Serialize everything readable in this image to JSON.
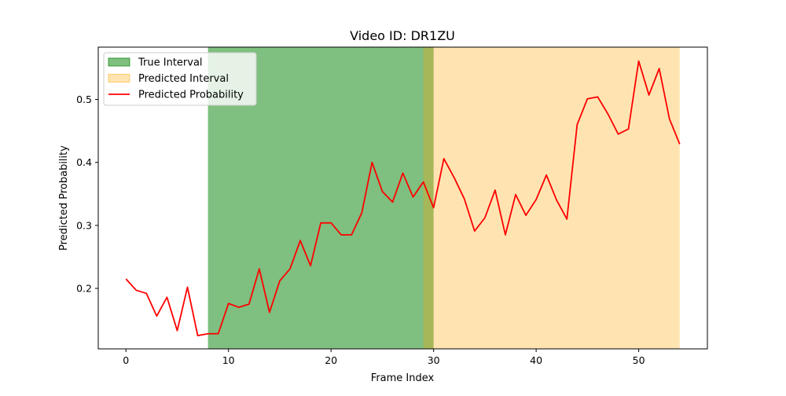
{
  "chart_data": {
    "type": "line",
    "title": "Video ID: DR1ZU",
    "xlabel": "Frame Index",
    "ylabel": "Predicted Probability",
    "xlim": [
      -2.7,
      56.7
    ],
    "ylim": [
      0.104,
      0.583
    ],
    "xticks": [
      0,
      10,
      20,
      30,
      40,
      50
    ],
    "yticks": [
      0.2,
      0.3,
      0.4,
      0.5
    ],
    "xtick_labels": [
      "0",
      "10",
      "20",
      "30",
      "40",
      "50"
    ],
    "ytick_labels": [
      "0.2",
      "0.3",
      "0.4",
      "0.5"
    ],
    "grid": false,
    "legend_position": "upper-left",
    "intervals": [
      {
        "name": "True Interval",
        "start": 8,
        "end": 30,
        "color": "#008000",
        "opacity": 0.5
      },
      {
        "name": "Predicted Interval",
        "start": 29,
        "end": 54,
        "color": "#ffa500",
        "opacity": 0.3
      }
    ],
    "series": [
      {
        "name": "Predicted Probability",
        "color": "#ff0000",
        "x": [
          0,
          1,
          2,
          3,
          4,
          5,
          6,
          7,
          8,
          9,
          10,
          11,
          12,
          13,
          14,
          15,
          16,
          17,
          18,
          19,
          20,
          21,
          22,
          23,
          24,
          25,
          26,
          27,
          28,
          29,
          30,
          31,
          32,
          33,
          34,
          35,
          36,
          37,
          38,
          39,
          40,
          41,
          42,
          43,
          44,
          45,
          46,
          47,
          48,
          49,
          50,
          51,
          52,
          53,
          54
        ],
        "values": [
          0.215,
          0.197,
          0.192,
          0.156,
          0.186,
          0.133,
          0.202,
          0.125,
          0.128,
          0.128,
          0.176,
          0.17,
          0.175,
          0.231,
          0.162,
          0.212,
          0.231,
          0.276,
          0.236,
          0.304,
          0.304,
          0.285,
          0.285,
          0.32,
          0.4,
          0.354,
          0.337,
          0.383,
          0.345,
          0.369,
          0.328,
          0.406,
          0.376,
          0.342,
          0.291,
          0.312,
          0.356,
          0.285,
          0.349,
          0.316,
          0.341,
          0.38,
          0.34,
          0.31,
          0.46,
          0.501,
          0.504,
          0.477,
          0.445,
          0.453,
          0.561,
          0.507,
          0.549,
          0.469,
          0.429
        ]
      }
    ]
  }
}
